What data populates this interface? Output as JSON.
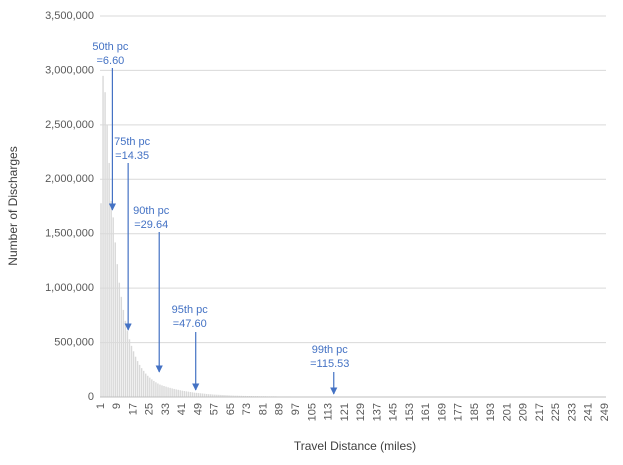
{
  "chart_data": {
    "type": "bar",
    "x_label": "Travel Distance (miles)",
    "y_label": "Number of Discharges",
    "color": "#d9d9d9",
    "grid": true,
    "categories": [
      "1",
      null,
      null,
      null,
      null,
      null,
      null,
      null,
      "9",
      null,
      null,
      null,
      null,
      null,
      null,
      null,
      "17",
      null,
      null,
      null,
      null,
      null,
      null,
      null,
      "25",
      null,
      null,
      null,
      null,
      null,
      null,
      null,
      "33",
      null,
      null,
      null,
      null,
      null,
      null,
      null,
      "41",
      null,
      null,
      null,
      null,
      null,
      null,
      null,
      "49",
      null,
      null,
      null,
      null,
      null,
      null,
      null,
      "57",
      null,
      null,
      null,
      null,
      null,
      null,
      null,
      "65",
      null,
      null,
      null,
      null,
      null,
      null,
      null,
      "73",
      null,
      null,
      null,
      null,
      null,
      null,
      null,
      "81",
      null,
      null,
      null,
      null,
      null,
      null,
      null,
      "89",
      null,
      null,
      null,
      null,
      null,
      null,
      null,
      "97",
      null,
      null,
      null,
      null,
      null,
      null,
      null,
      "105",
      null,
      null,
      null,
      null,
      null,
      null,
      null,
      "113",
      null,
      null,
      null,
      null,
      null,
      null,
      null,
      "121",
      null,
      null,
      null,
      null,
      null,
      null,
      null,
      "129",
      null,
      null,
      null,
      null,
      null,
      null,
      null,
      "137",
      null,
      null,
      null,
      null,
      null,
      null,
      null,
      "145",
      null,
      null,
      null,
      null,
      null,
      null,
      null,
      "153",
      null,
      null,
      null,
      null,
      null,
      null,
      null,
      "161",
      null,
      null,
      null,
      null,
      null,
      null,
      null,
      "169",
      null,
      null,
      null,
      null,
      null,
      null,
      null,
      "177",
      null,
      null,
      null,
      null,
      null,
      null,
      null,
      "185",
      null,
      null,
      null,
      null,
      null,
      null,
      null,
      "193",
      null,
      null,
      null,
      null,
      null,
      null,
      null,
      "201",
      null,
      null,
      null,
      null,
      null,
      null,
      null,
      "209",
      null,
      null,
      null,
      null,
      null,
      null,
      null,
      "217",
      null,
      null,
      null,
      null,
      null,
      null,
      null,
      "225",
      null,
      null,
      null,
      null,
      null,
      null,
      null,
      "233",
      null,
      null,
      null,
      null,
      null,
      null,
      null,
      "241",
      null,
      null,
      null,
      null,
      null,
      null,
      null,
      "249"
    ],
    "values": [
      1780000,
      2950000,
      2800000,
      2500000,
      2150000,
      1800000,
      1650000,
      1420000,
      1220000,
      1050000,
      920000,
      800000,
      700000,
      610000,
      530000,
      470000,
      420000,
      370000,
      330000,
      295000,
      265000,
      240000,
      215000,
      195000,
      178000,
      162000,
      148000,
      135000,
      124000,
      114000,
      107000,
      101000,
      95000,
      89000,
      84000,
      79000,
      74000,
      70000,
      66000,
      62000,
      58000,
      55000,
      52000,
      49000,
      46000,
      43000,
      40000,
      38000,
      36000,
      34000,
      32000,
      30000,
      28000,
      26000,
      25000,
      23000,
      22000,
      21000,
      20000,
      19000,
      18000,
      17000,
      16000,
      15000,
      14000,
      13000,
      12000,
      12000,
      11000,
      11000,
      10000,
      10000,
      9000,
      9000,
      9000,
      8000,
      8000,
      8000,
      7000,
      7000,
      7000,
      7000,
      6000,
      6000,
      6000,
      6000,
      6000,
      5000,
      5000,
      5000,
      5000,
      5000,
      5000,
      5000,
      4000,
      4000,
      4000,
      4000,
      4000,
      4000,
      3000,
      3000,
      3000,
      3000,
      3000,
      3000,
      3000,
      3000,
      3000,
      3000,
      3000,
      3000,
      3000,
      3000,
      3000,
      3000,
      3000,
      3000,
      3000,
      3000,
      2000,
      2000,
      2000,
      2000,
      2000,
      2000,
      2000,
      2000,
      2000,
      2000,
      2000,
      2000,
      2000,
      2000,
      2000,
      2000,
      2000,
      2000,
      2000,
      2000,
      2000,
      2000,
      2000,
      2000,
      2000,
      2000,
      2000,
      2000,
      2000,
      2000,
      2000,
      2000,
      2000,
      2000,
      2000,
      2000,
      2000,
      2000,
      2000,
      2000,
      1000,
      1000,
      1000,
      1000,
      1000,
      1000,
      1000,
      1000,
      1000,
      1000,
      1000,
      1000,
      1000,
      1000,
      1000,
      1000,
      1000,
      1000,
      1000,
      1000,
      1000,
      1000,
      1000,
      1000,
      1000,
      1000,
      1000,
      1000,
      1000,
      1000,
      1000,
      1000,
      1000,
      1000,
      1000,
      1000,
      1000,
      1000,
      1000,
      1000,
      1000,
      1000,
      1000,
      1000,
      1000,
      1000,
      1000,
      1000,
      1000,
      1000,
      1000,
      1000,
      1000,
      1000,
      1000,
      1000,
      1000,
      1000,
      1000,
      1000,
      1000,
      1000,
      1000,
      1000,
      1000,
      1000,
      1000,
      1000,
      1000,
      1000,
      1000,
      1000,
      1000,
      1000,
      1000,
      1000,
      1000,
      1000,
      1000,
      1000,
      1000,
      1000,
      1000,
      1000,
      1000,
      1000,
      1000,
      1000,
      1000
    ],
    "ylim": [
      0,
      3500000
    ],
    "yticks": [
      0,
      {
        "value": 500000,
        "label": "500,000"
      },
      {
        "value": 1000000,
        "label": "1,000,000"
      },
      {
        "value": 1500000,
        "label": "1,500,000"
      },
      {
        "value": 2000000,
        "label": "2,000,000"
      },
      {
        "value": 2500000,
        "label": "2,500,000"
      },
      {
        "value": 3000000,
        "label": "3,000,000"
      },
      {
        "value": 3500000,
        "label": "3,500,000"
      }
    ],
    "annotation_color": "#4472c4",
    "annotations": [
      {
        "text": "50th pc",
        "value": 6.6,
        "value_label": "=6.60"
      },
      {
        "text": "75th pc",
        "value": 14.35,
        "value_label": "=14.35"
      },
      {
        "text": "90th pc",
        "value": 29.64,
        "value_label": "=29.64"
      },
      {
        "text": "95th pc",
        "value": 47.6,
        "value_label": "=47.60"
      },
      {
        "text": "99th pc",
        "value": 115.53,
        "value_label": "=115.53"
      }
    ]
  }
}
